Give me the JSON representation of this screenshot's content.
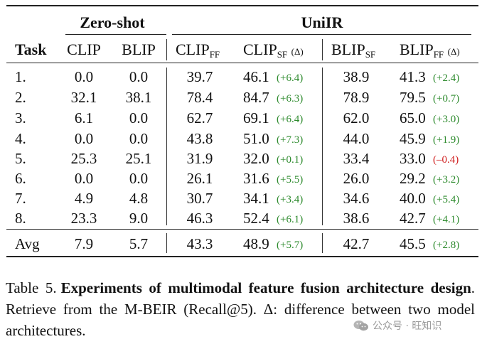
{
  "table": {
    "group_headers": {
      "zeroshot": "Zero-shot",
      "uniir": "UniIR"
    },
    "col_task": "Task",
    "col_clip": "CLIP",
    "col_blip": "BLIP",
    "col_clip_ff": {
      "base": "CLIP",
      "sub": "FF"
    },
    "col_clip_sf": {
      "base": "CLIP",
      "sub": "SF",
      "delta": "(Δ)"
    },
    "col_blip_sf": {
      "base": "BLIP",
      "sub": "SF"
    },
    "col_blip_ff": {
      "base": "BLIP",
      "sub": "FF",
      "delta": "(Δ)"
    },
    "rows": [
      {
        "task": "1.",
        "clip": "0.0",
        "blip": "0.0",
        "clip_ff": "39.7",
        "clip_sf": "46.1",
        "clip_delta": "(+6.4)",
        "blip_sf": "38.9",
        "blip_ff": "41.3",
        "blip_delta": "(+2.4)"
      },
      {
        "task": "2.",
        "clip": "32.1",
        "blip": "38.1",
        "clip_ff": "78.4",
        "clip_sf": "84.7",
        "clip_delta": "(+6.3)",
        "blip_sf": "78.9",
        "blip_ff": "79.5",
        "blip_delta": "(+0.7)"
      },
      {
        "task": "3.",
        "clip": "6.1",
        "blip": "0.0",
        "clip_ff": "62.7",
        "clip_sf": "69.1",
        "clip_delta": "(+6.4)",
        "blip_sf": "62.0",
        "blip_ff": "65.0",
        "blip_delta": "(+3.0)"
      },
      {
        "task": "4.",
        "clip": "0.0",
        "blip": "0.0",
        "clip_ff": "43.8",
        "clip_sf": "51.0",
        "clip_delta": "(+7.3)",
        "blip_sf": "44.0",
        "blip_ff": "45.9",
        "blip_delta": "(+1.9)"
      },
      {
        "task": "5.",
        "clip": "25.3",
        "blip": "25.1",
        "clip_ff": "31.9",
        "clip_sf": "32.0",
        "clip_delta": "(+0.1)",
        "blip_sf": "33.4",
        "blip_ff": "33.0",
        "blip_delta": "(–0.4)"
      },
      {
        "task": "6.",
        "clip": "0.0",
        "blip": "0.0",
        "clip_ff": "26.1",
        "clip_sf": "31.6",
        "clip_delta": "(+5.5)",
        "blip_sf": "26.0",
        "blip_ff": "29.2",
        "blip_delta": "(+3.2)"
      },
      {
        "task": "7.",
        "clip": "4.9",
        "blip": "4.8",
        "clip_ff": "30.7",
        "clip_sf": "34.1",
        "clip_delta": "(+3.4)",
        "blip_sf": "34.6",
        "blip_ff": "40.0",
        "blip_delta": "(+5.4)"
      },
      {
        "task": "8.",
        "clip": "23.3",
        "blip": "9.0",
        "clip_ff": "46.3",
        "clip_sf": "52.4",
        "clip_delta": "(+6.1)",
        "blip_sf": "38.6",
        "blip_ff": "42.7",
        "blip_delta": "(+4.1)"
      }
    ],
    "avg": {
      "task": "Avg",
      "clip": "7.9",
      "blip": "5.7",
      "clip_ff": "43.3",
      "clip_sf": "48.9",
      "clip_delta": "(+5.7)",
      "blip_sf": "42.7",
      "blip_ff": "45.5",
      "blip_delta": "(+2.8)"
    }
  },
  "caption": {
    "label": "Table 5.",
    "bold": "Experiments of multimodal feature fusion architecture design",
    "rest": ". Retrieve from the M-BEIR (Recall@5). Δ: difference between two model architectures."
  },
  "watermark": {
    "text": "公众号 · 旺知识",
    "icon": "wechat-icon"
  },
  "colors": {
    "positive": "#2e8b2e",
    "negative": "#d02020"
  }
}
